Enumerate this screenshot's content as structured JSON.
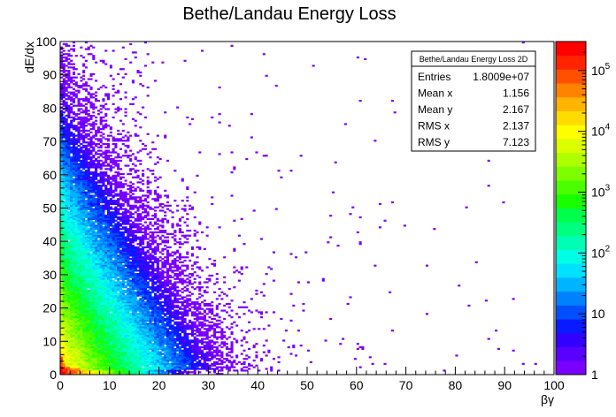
{
  "chart_data": {
    "type": "heatmap",
    "title": "Bethe/Landau Energy Loss",
    "xlabel": "βγ",
    "ylabel": "dE/dx",
    "xlim": [
      0,
      100
    ],
    "ylim": [
      0,
      100
    ],
    "x_ticks": [
      "0",
      "10",
      "20",
      "30",
      "40",
      "50",
      "60",
      "70",
      "80",
      "90",
      "100"
    ],
    "y_ticks": [
      "0",
      "10",
      "20",
      "30",
      "40",
      "50",
      "60",
      "70",
      "80",
      "90",
      "100"
    ],
    "z_scale": "log",
    "z_range": [
      1,
      300000
    ],
    "z_ticks": [
      {
        "base": "1",
        "exp": "",
        "value": 1
      },
      {
        "base": "10",
        "exp": "",
        "value": 10
      },
      {
        "base": "10",
        "exp": "2",
        "value": 100
      },
      {
        "base": "10",
        "exp": "3",
        "value": 1000
      },
      {
        "base": "10",
        "exp": "4",
        "value": 10000
      },
      {
        "base": "10",
        "exp": "5",
        "value": 100000
      }
    ],
    "palette": [
      "#7a00ff",
      "#5a00ff",
      "#3300ff",
      "#0a1aff",
      "#0050ff",
      "#0082ff",
      "#00b4ff",
      "#00e1ff",
      "#00ffe6",
      "#00ffb4",
      "#00ff80",
      "#00ff4b",
      "#19ff00",
      "#4bff00",
      "#7dff00",
      "#afff00",
      "#dcff00",
      "#ffff00",
      "#ffdc00",
      "#ffb400",
      "#ff8200",
      "#ff5000",
      "#ff2300",
      "#ff0000"
    ],
    "stats": {
      "name": "Bethe/Landau Energy Loss 2D",
      "rows": [
        {
          "label": "Entries",
          "value": "1.8009e+07"
        },
        {
          "label": "Mean x",
          "value": "1.156"
        },
        {
          "label": "Mean y",
          "value": "2.167"
        },
        {
          "label": "RMS x",
          "value": "2.137"
        },
        {
          "label": "RMS y",
          "value": "7.123"
        }
      ]
    }
  }
}
